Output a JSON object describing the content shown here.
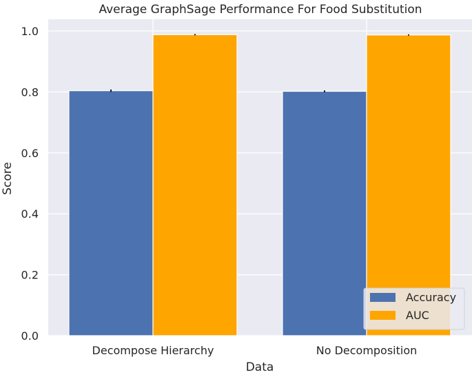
{
  "chart_data": {
    "type": "bar",
    "title": "Average GraphSage Performance For Food Substitution",
    "xlabel": "Data",
    "ylabel": "Score",
    "categories": [
      "Decompose Hierarchy",
      "No Decomposition"
    ],
    "series": [
      {
        "name": "Accuracy",
        "values": [
          0.804,
          0.802
        ],
        "errors": [
          0.004,
          0.003
        ],
        "color": "#4c72b0"
      },
      {
        "name": "AUC",
        "values": [
          0.988,
          0.987
        ],
        "errors": [
          0.002,
          0.002
        ],
        "color": "#ffa500"
      }
    ],
    "ylim": [
      0,
      1.0
    ],
    "yticks": [
      0.0,
      0.2,
      0.4,
      0.6,
      0.8,
      1.0
    ],
    "ytick_labels": [
      "0.0",
      "0.2",
      "0.4",
      "0.6",
      "0.8",
      "1.0"
    ],
    "grid": true,
    "grid_color": "#ffffff",
    "plot_background": "#eaeaf2",
    "legend_position": "bottom-right"
  }
}
